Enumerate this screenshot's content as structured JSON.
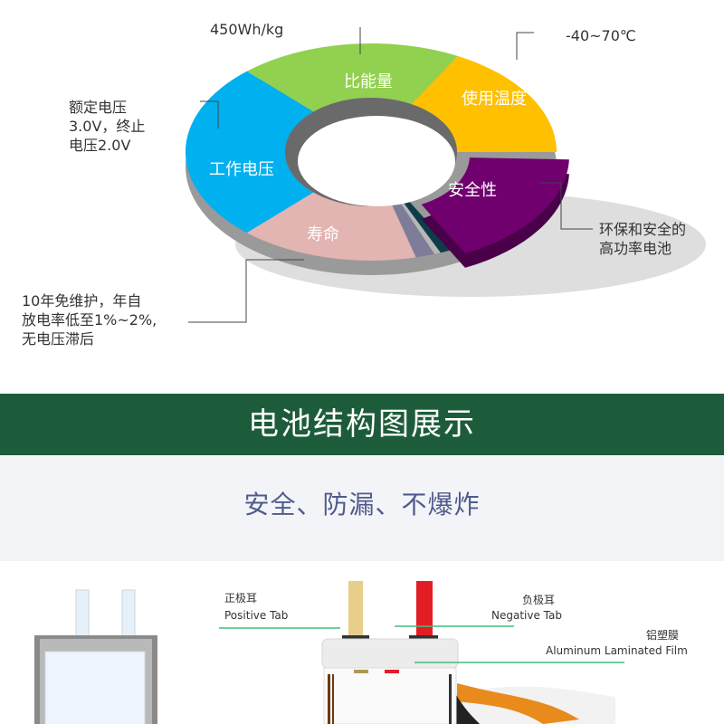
{
  "donut": {
    "segments": [
      {
        "label": "工作电压",
        "color": "#00b0ef"
      },
      {
        "label": "比能量",
        "color": "#92d050"
      },
      {
        "label": "使用温度",
        "color": "#ffc000"
      },
      {
        "label": "安全性",
        "color": "#70006e"
      },
      {
        "label": "寿命",
        "color": "#e2b4b2"
      }
    ]
  },
  "notes": {
    "energy": "450Wh/kg",
    "temperature": "-40~70℃",
    "voltage": [
      "额定电压",
      "3.0V，终止",
      "电压2.0V"
    ],
    "safety": [
      "环保和安全的",
      "高功率电池"
    ],
    "life": [
      "10年免维护，年自",
      "放电率低至1%~2%,",
      "无电压滞后"
    ]
  },
  "banner": {
    "title": "电池结构图展示",
    "color": "#1d5c3a"
  },
  "subtitle": "安全、防漏、不爆炸",
  "structure": {
    "positive_tab": {
      "cn": "正极耳",
      "en": "Positive Tab"
    },
    "negative_tab": {
      "cn": "负极耳",
      "en": "Negative Tab"
    },
    "film": {
      "cn": "铝塑膜",
      "en": "Aluminum Laminated Film"
    },
    "line_color": "#3cbf7a"
  }
}
